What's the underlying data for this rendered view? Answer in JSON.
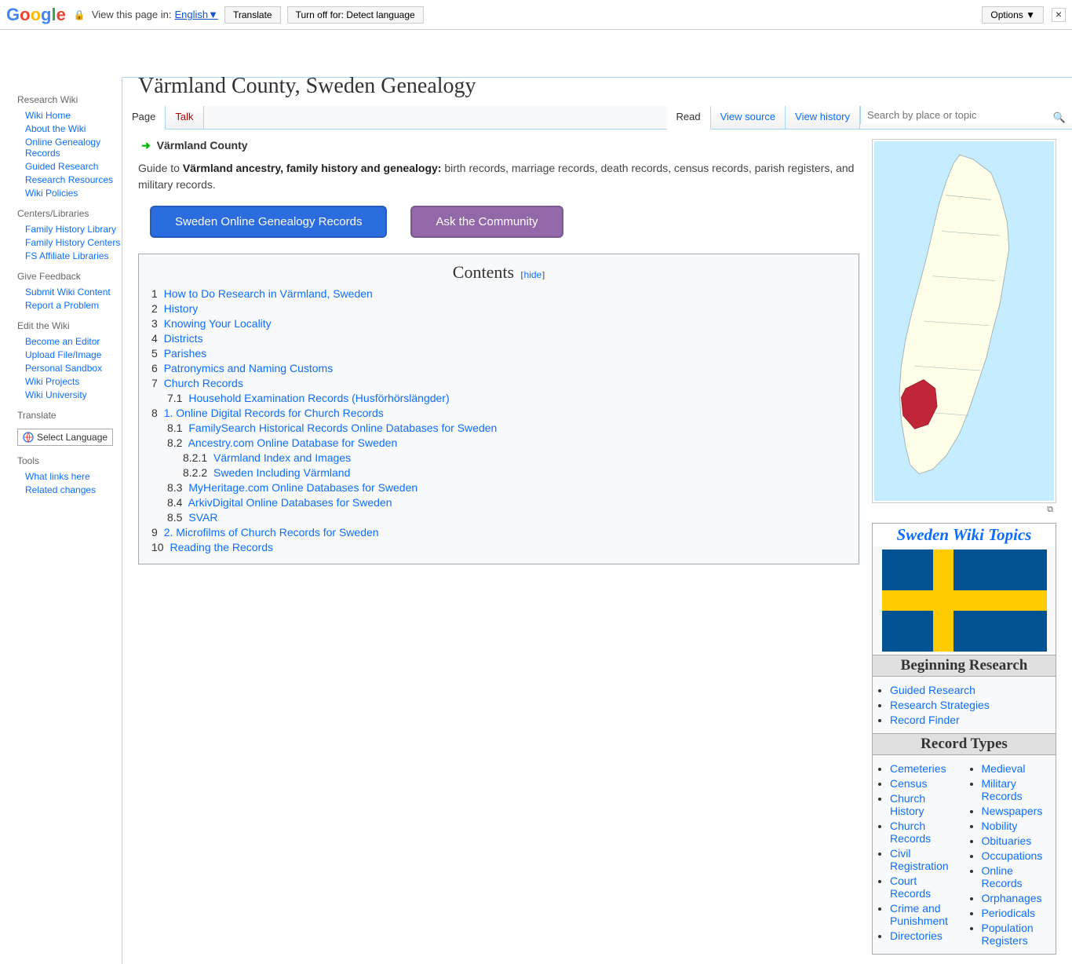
{
  "translate_bar": {
    "view_in": "View this page in:",
    "language": "English",
    "translate_btn": "Translate",
    "turnoff_btn": "Turn off for: Detect language",
    "options_btn": "Options ▼"
  },
  "left_nav": {
    "sections": [
      {
        "heading": "Research Wiki",
        "items": [
          "Wiki Home",
          "About the Wiki",
          "Online Genealogy Records",
          "Guided Research",
          "Research Resources",
          "Wiki Policies"
        ]
      },
      {
        "heading": "Centers/Libraries",
        "items": [
          "Family History Library",
          "Family History Centers",
          "FS Affiliate Libraries"
        ]
      },
      {
        "heading": "Give Feedback",
        "items": [
          "Submit Wiki Content",
          "Report a Problem"
        ]
      },
      {
        "heading": "Edit the Wiki",
        "items": [
          "Become an Editor",
          "Upload File/Image",
          "Personal Sandbox",
          "Wiki Projects",
          "Wiki University"
        ]
      },
      {
        "heading": "Translate",
        "items": []
      },
      {
        "heading": "Tools",
        "items": [
          "What links here",
          "Related changes"
        ]
      }
    ],
    "select_language": "Select Language"
  },
  "tabs": {
    "left": [
      {
        "label": "Page",
        "active": true
      },
      {
        "label": "Talk",
        "red": true
      }
    ],
    "right": [
      {
        "label": "Read",
        "active": true
      },
      {
        "label": "View source"
      },
      {
        "label": "View history"
      }
    ],
    "search_placeholder": "Search by place or topic"
  },
  "page": {
    "title": "Värmland County, Sweden Genealogy",
    "breadcrumb_current": "Värmland County",
    "intro_prefix": "Guide to ",
    "intro_bold": "Värmland ancestry, family history and genealogy:",
    "intro_rest": " birth records, marriage records, death records, census records, parish registers, and military records.",
    "btn1": "Sweden Online Genealogy Records",
    "btn2": "Ask the Community"
  },
  "toc": {
    "title": "Contents",
    "hide": "hide",
    "items": [
      {
        "num": "1",
        "text": "How to Do Research in Värmland, Sweden",
        "lvl": 1
      },
      {
        "num": "2",
        "text": "History",
        "lvl": 1
      },
      {
        "num": "3",
        "text": "Knowing Your Locality",
        "lvl": 1
      },
      {
        "num": "4",
        "text": "Districts",
        "lvl": 1
      },
      {
        "num": "5",
        "text": "Parishes",
        "lvl": 1
      },
      {
        "num": "6",
        "text": "Patronymics and Naming Customs",
        "lvl": 1
      },
      {
        "num": "7",
        "text": "Church Records",
        "lvl": 1
      },
      {
        "num": "7.1",
        "text": "Household Examination Records (Husförhörslängder)",
        "lvl": 2
      },
      {
        "num": "8",
        "text": "1. Online Digital Records for Church Records",
        "lvl": 1
      },
      {
        "num": "8.1",
        "text": "FamilySearch Historical Records Online Databases for Sweden",
        "lvl": 2
      },
      {
        "num": "8.2",
        "text": "Ancestry.com Online Database for Sweden",
        "lvl": 2
      },
      {
        "num": "8.2.1",
        "text": "Värmland Index and Images",
        "lvl": 3
      },
      {
        "num": "8.2.2",
        "text": "Sweden Including Värmland",
        "lvl": 3
      },
      {
        "num": "8.3",
        "text": "MyHeritage.com Online Databases for Sweden",
        "lvl": 2
      },
      {
        "num": "8.4",
        "text": "ArkivDigital Online Databases for Sweden",
        "lvl": 2
      },
      {
        "num": "8.5",
        "text": "SVAR",
        "lvl": 2
      },
      {
        "num": "9",
        "text": "2. Microfilms of Church Records for Sweden",
        "lvl": 1
      },
      {
        "num": "10",
        "text": "Reading the Records",
        "lvl": 1
      }
    ]
  },
  "topics": {
    "title": "Sweden Wiki Topics",
    "flag": {
      "bg": "#005293",
      "cross": "#fecb00"
    },
    "section1": {
      "heading": "Beginning Research",
      "items": [
        "Guided Research",
        "Research Strategies",
        "Record Finder"
      ]
    },
    "section2": {
      "heading": "Record Types",
      "col1": [
        "Cemeteries",
        "Census",
        "Church History",
        "Church Records",
        "Civil Registration",
        "Court Records",
        "Crime and Punishment",
        "Directories"
      ],
      "col2": [
        "Medieval",
        "Military Records",
        "Newspapers",
        "Nobility",
        "Obituaries",
        "Occupations",
        "Online Records",
        "Orphanages",
        "Periodicals",
        "Population Registers"
      ]
    }
  },
  "map": {
    "land": "#fefee9",
    "water": "#c6ecff",
    "border": "#9db2b2",
    "highlight": "#c02637"
  }
}
